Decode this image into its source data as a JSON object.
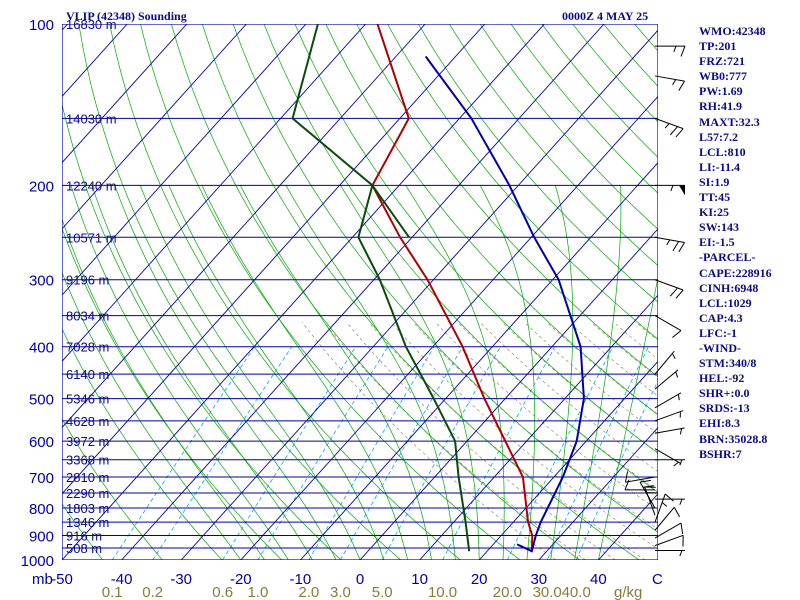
{
  "header": {
    "title": "VLIP (42348) Sounding",
    "time": "0000Z  4 MAY 25"
  },
  "chart_data": {
    "type": "line",
    "title": "VLIP (42348) Sounding",
    "xlabel": "",
    "ylabel": "mb",
    "xlim": [
      -50,
      50
    ],
    "ylim": [
      1000,
      100
    ],
    "y_scale": "log",
    "x_tick_labels": [
      "-50",
      "-40",
      "-30",
      "-20",
      "-10",
      "0",
      "10",
      "20",
      "30",
      "40",
      "50"
    ],
    "pressure_tick_labels": [
      "100",
      "200",
      "300",
      "400",
      "500",
      "600",
      "700",
      "800",
      "900",
      "1000"
    ],
    "pressure_ticks": [
      100,
      200,
      300,
      400,
      500,
      600,
      700,
      800,
      900,
      1000
    ],
    "height_labels": [
      {
        "p": 100,
        "text": "16830 m"
      },
      {
        "p": 150,
        "text": "14030 m"
      },
      {
        "p": 200,
        "text": "12240 m"
      },
      {
        "p": 250,
        "text": "10571 m"
      },
      {
        "p": 300,
        "text": "9196 m"
      },
      {
        "p": 350,
        "text": "8034 m"
      },
      {
        "p": 400,
        "text": "7028 m"
      },
      {
        "p": 450,
        "text": "6140 m"
      },
      {
        "p": 500,
        "text": "5346 m"
      },
      {
        "p": 550,
        "text": "4628 m"
      },
      {
        "p": 600,
        "text": "3972 m"
      },
      {
        "p": 650,
        "text": "3368 m"
      },
      {
        "p": 700,
        "text": "2810 m"
      },
      {
        "p": 750,
        "text": "2290 m"
      },
      {
        "p": 800,
        "text": "1803 m"
      },
      {
        "p": 850,
        "text": "1346 m"
      },
      {
        "p": 900,
        "text": "916 m"
      },
      {
        "p": 950,
        "text": "508 m"
      }
    ],
    "mixing_ratio_labels": [
      "0.1",
      "0.2",
      "0.6",
      "1.0",
      "2.0",
      "3.0",
      "5.0",
      "10.0",
      "20.0",
      "30.0",
      "40.0"
    ],
    "mixing_ratio_values": [
      0.1,
      0.2,
      0.6,
      1.0,
      2.0,
      3.0,
      5.0,
      10.0,
      20.0,
      30.0,
      40.0
    ],
    "mixing_ratio_unit": "g/kg",
    "corner_labels": {
      "x_left": "mb",
      "x_right": "C"
    },
    "series": [
      {
        "name": "temperature",
        "color": "#b00000",
        "points": [
          {
            "p": 963,
            "t": 27.5
          },
          {
            "p": 900,
            "t": 25.2
          },
          {
            "p": 850,
            "t": 22.5
          },
          {
            "p": 700,
            "t": 14.8
          },
          {
            "p": 500,
            "t": -3.5
          },
          {
            "p": 400,
            "t": -15.0
          },
          {
            "p": 300,
            "t": -31.0
          },
          {
            "p": 250,
            "t": -42.0
          },
          {
            "p": 200,
            "t": -54.5
          },
          {
            "p": 150,
            "t": -58.5
          },
          {
            "p": 100,
            "t": -78.0
          }
        ]
      },
      {
        "name": "dewpoint",
        "color": "#0a4a0a",
        "points": [
          {
            "p": 963,
            "t": 17.0
          },
          {
            "p": 850,
            "t": 12.0
          },
          {
            "p": 700,
            "t": 4.0
          },
          {
            "p": 600,
            "t": -2.0
          },
          {
            "p": 500,
            "t": -12.0
          },
          {
            "p": 400,
            "t": -24.5
          },
          {
            "p": 300,
            "t": -39.0
          },
          {
            "p": 250,
            "t": -49.0
          },
          {
            "p": 200,
            "t": -54.5
          },
          {
            "p": 150,
            "t": -78.0
          },
          {
            "p": 100,
            "t": -88.0
          }
        ]
      },
      {
        "name": "dewpoint-upper",
        "color": "#0a4a0a",
        "points": [
          {
            "p": 200,
            "t": -54.5
          },
          {
            "p": 250,
            "t": -40.5
          }
        ]
      },
      {
        "name": "parcel",
        "color": "#0000aa",
        "points": [
          {
            "p": 935,
            "t": 24.0
          },
          {
            "p": 963,
            "t": 27.5
          },
          {
            "p": 900,
            "t": 25.8
          },
          {
            "p": 850,
            "t": 24.6
          },
          {
            "p": 700,
            "t": 21.5
          },
          {
            "p": 600,
            "t": 18.4
          },
          {
            "p": 500,
            "t": 13.2
          },
          {
            "p": 400,
            "t": 4.8
          },
          {
            "p": 300,
            "t": -9.0
          },
          {
            "p": 250,
            "t": -19.5
          },
          {
            "p": 200,
            "t": -31.5
          },
          {
            "p": 150,
            "t": -48.0
          },
          {
            "p": 115,
            "t": -65.0
          }
        ]
      }
    ],
    "wind_barbs": [
      {
        "p": 960,
        "dir": 270,
        "spd": 5
      },
      {
        "p": 940,
        "dir": 250,
        "spd": 10
      },
      {
        "p": 910,
        "dir": 240,
        "spd": 10
      },
      {
        "p": 880,
        "dir": 220,
        "spd": 10
      },
      {
        "p": 850,
        "dir": 200,
        "spd": 15
      },
      {
        "p": 825,
        "dir": 160,
        "spd": 20
      },
      {
        "p": 800,
        "dir": 150,
        "spd": 20
      },
      {
        "p": 770,
        "dir": 270,
        "spd": 5
      },
      {
        "p": 740,
        "dir": 90,
        "spd": 10
      },
      {
        "p": 700,
        "dir": 80,
        "spd": 10
      },
      {
        "p": 650,
        "dir": 270,
        "spd": 5
      },
      {
        "p": 620,
        "dir": 300,
        "spd": 5
      },
      {
        "p": 580,
        "dir": 260,
        "spd": 5
      },
      {
        "p": 550,
        "dir": 250,
        "spd": 5
      },
      {
        "p": 520,
        "dir": 240,
        "spd": 5
      },
      {
        "p": 480,
        "dir": 230,
        "spd": 5
      },
      {
        "p": 450,
        "dir": 220,
        "spd": 5
      },
      {
        "p": 350,
        "dir": 300,
        "spd": 10
      },
      {
        "p": 300,
        "dir": 290,
        "spd": 20
      },
      {
        "p": 250,
        "dir": 280,
        "spd": 25
      },
      {
        "p": 200,
        "dir": 270,
        "spd": 55
      },
      {
        "p": 150,
        "dir": 290,
        "spd": 25
      },
      {
        "p": 125,
        "dir": 280,
        "spd": 15
      },
      {
        "p": 110,
        "dir": 270,
        "spd": 15
      }
    ]
  },
  "indices": [
    "WMO:42348",
    "TP:201",
    "FRZ:721",
    "WB0:777",
    "PW:1.69",
    "RH:41.9",
    "MAXT:32.3",
    "L57:7.2",
    "LCL:810",
    "LI:-11.4",
    "SI:1.9",
    "TT:45",
    "KI:25",
    "SW:143",
    "EI:-1.5",
    "-PARCEL-",
    "CAPE:228916",
    "CINH:6948",
    "LCL:1029",
    "CAP:4.3",
    "LFC:-1",
    "-WIND-",
    "STM:340/8",
    "HEL:-92",
    "SHR+:0.0",
    "SRDS:-13",
    "EHI:8.3",
    "BRN:35028.8",
    "BSHR:7"
  ],
  "colors": {
    "isobar": "#0000aa",
    "isotherm": "#0000aa",
    "dry_adiabat": "#00aa00",
    "moist_adiabat": "#00aa00",
    "mixing_ratio": "#00aaee",
    "theta_e": "#8a7a50",
    "text_navy": "#0a0a8c",
    "axis_text": "#0000aa",
    "mixing_label": "#8a7a3a"
  }
}
